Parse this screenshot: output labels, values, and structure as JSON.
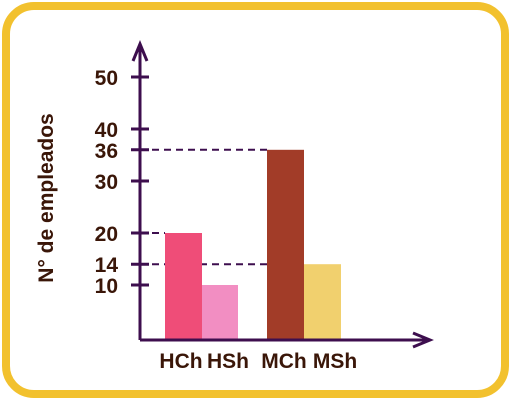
{
  "colors": {
    "frame": "#F2C12E",
    "axis": "#3D0E4E",
    "guide": "#3D0E4E",
    "text": "#3A1608"
  },
  "chart_data": {
    "type": "bar",
    "title": "",
    "xlabel": "",
    "ylabel": "N° de empleados",
    "categories": [
      "HCh",
      "HSh",
      "MCh",
      "MSh"
    ],
    "values": [
      20,
      10,
      36,
      14
    ],
    "bar_colors": [
      "#EF4D78",
      "#F28EC2",
      "#A23C28",
      "#F1D06E"
    ],
    "yticks": [
      10,
      14,
      20,
      30,
      36,
      40,
      50
    ],
    "dashed_guides": [
      20,
      36,
      14
    ],
    "ylim": [
      0,
      56
    ],
    "grid": false,
    "legend": "none"
  }
}
